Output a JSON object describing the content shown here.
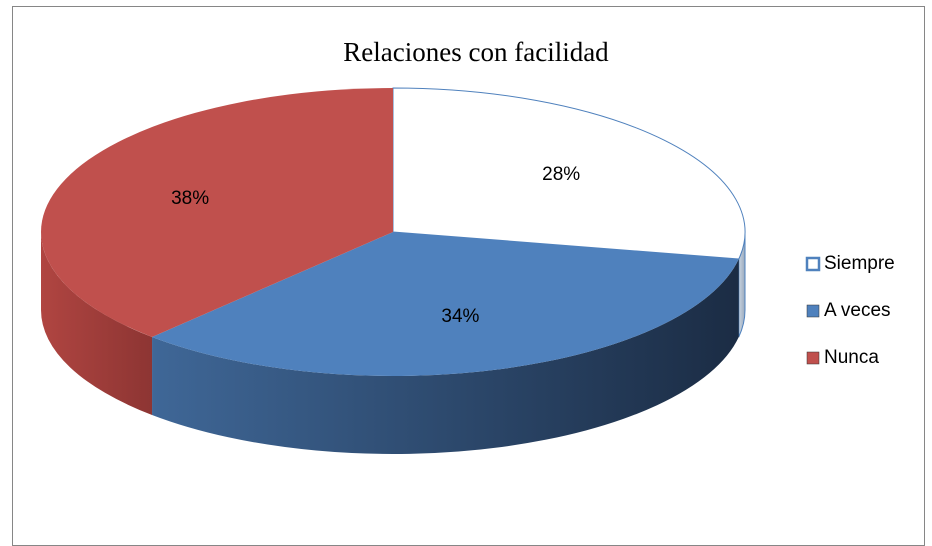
{
  "chart_data": {
    "type": "pie3d",
    "title": "Relaciones con facilidad",
    "categories": [
      "Siempre",
      "A veces",
      "Nunca"
    ],
    "values": [
      28,
      34,
      38
    ],
    "value_labels": [
      "28%",
      "34%",
      "38%"
    ],
    "colors": [
      "#ffffff",
      "#4f81bd",
      "#c0504d"
    ],
    "legend": "right"
  }
}
